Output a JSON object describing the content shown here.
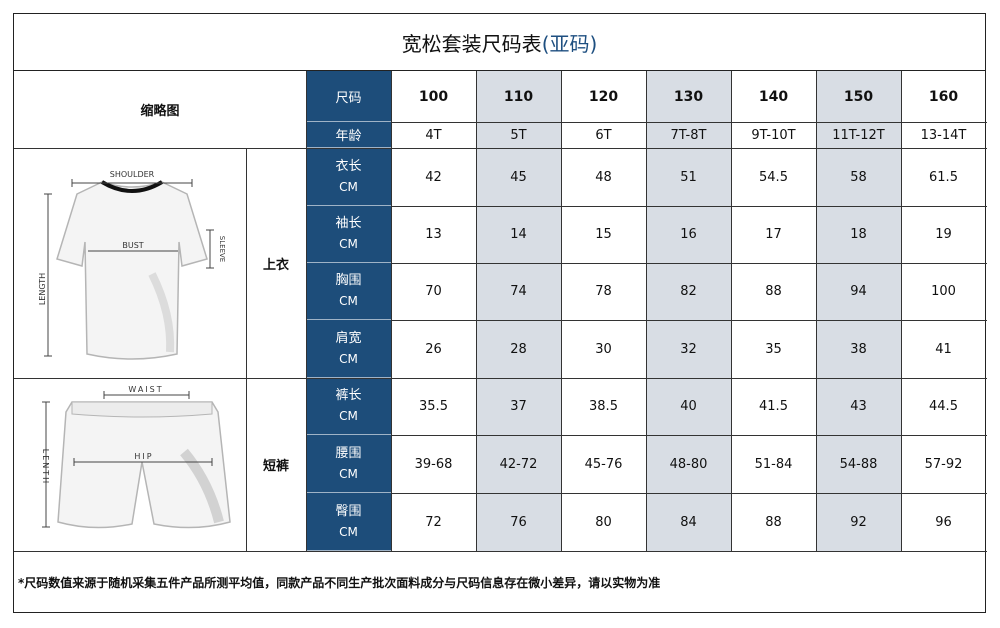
{
  "title": {
    "main": "宽松套装尺码表",
    "accent": "(亚码)"
  },
  "labels": {
    "thumbnail": "缩略图",
    "size_header": "尺码",
    "age_header": "年龄",
    "top": "上衣",
    "shorts": "短裤",
    "unit": "CM"
  },
  "sizes": [
    "100",
    "110",
    "120",
    "130",
    "140",
    "150",
    "160"
  ],
  "ages": [
    "4T",
    "5T",
    "6T",
    "7T-8T",
    "9T-10T",
    "11T-12T",
    "13-14T"
  ],
  "rows": [
    {
      "name": "衣长",
      "values": [
        "42",
        "45",
        "48",
        "51",
        "54.5",
        "58",
        "61.5"
      ]
    },
    {
      "name": "袖长",
      "values": [
        "13",
        "14",
        "15",
        "16",
        "17",
        "18",
        "19"
      ]
    },
    {
      "name": "胸围",
      "values": [
        "70",
        "74",
        "78",
        "82",
        "88",
        "94",
        "100"
      ]
    },
    {
      "name": "肩宽",
      "values": [
        "26",
        "28",
        "30",
        "32",
        "35",
        "38",
        "41"
      ]
    },
    {
      "name": "裤长",
      "values": [
        "35.5",
        "37",
        "38.5",
        "40",
        "41.5",
        "43",
        "44.5"
      ]
    },
    {
      "name": "腰围",
      "values": [
        "39-68",
        "42-72",
        "45-76",
        "48-80",
        "51-84",
        "54-88",
        "57-92"
      ]
    },
    {
      "name": "臀围",
      "values": [
        "72",
        "76",
        "80",
        "84",
        "88",
        "92",
        "96"
      ]
    }
  ],
  "shirt_labels": {
    "shoulder": "SHOULDER",
    "bust": "BUST",
    "sleeve": "SLEEVE",
    "length": "LENGTH"
  },
  "shorts_labels": {
    "waist": "WAIST",
    "hip": "HIP",
    "length": "LENTH"
  },
  "note": "*尺码数值来源于随机采集五件产品所测平均值，同款产品不同生产批次面料成分与尺码信息存在微小差异，请以实物为准",
  "colors": {
    "header_bg": "#1d4d7a",
    "shaded_col": "#d8dde4",
    "title_accent": "#1e4f80"
  }
}
